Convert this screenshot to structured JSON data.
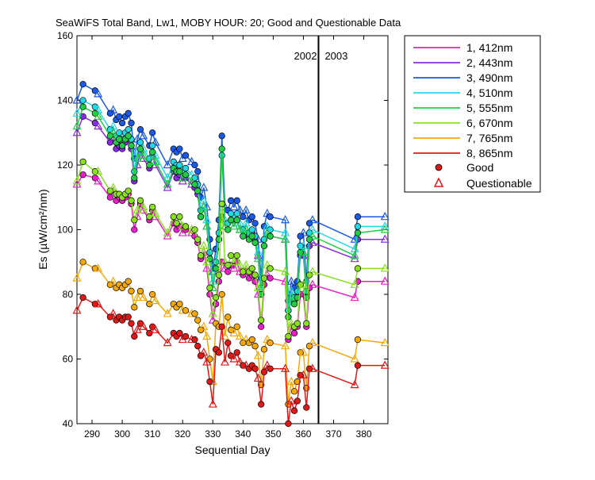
{
  "chart_data": {
    "type": "line",
    "title": "SeaWiFS Total Band,  Lw1, MOBY HOUR: 20;  Good and Questionable Data",
    "xlabel": "Sequential Day",
    "ylabel": "Es (µW/cm²/nm)",
    "xlim": [
      285,
      388
    ],
    "ylim": [
      40,
      160
    ],
    "xticks": [
      290,
      300,
      310,
      320,
      330,
      340,
      350,
      360,
      370,
      380
    ],
    "yticks": [
      40,
      60,
      80,
      100,
      120,
      140,
      160
    ],
    "grid": false,
    "legend_position": "outside-right",
    "year_divider": {
      "x": 365,
      "label_left": "2002",
      "label_right": "2003"
    },
    "x": [
      285,
      287,
      291,
      292,
      296,
      297,
      298,
      299,
      300,
      301,
      302,
      303,
      304,
      305,
      306,
      307,
      309,
      310,
      311,
      315,
      317,
      318,
      319,
      320,
      321,
      323,
      324,
      325,
      326,
      327,
      328,
      329,
      330,
      331,
      332,
      333,
      334,
      335,
      336,
      337,
      338,
      339,
      340,
      341,
      342,
      343,
      344,
      345,
      346,
      347,
      348,
      349,
      354,
      355,
      356,
      357,
      358,
      359,
      360,
      361,
      362,
      363,
      377,
      378,
      387
    ],
    "series": [
      {
        "name": "1, 412nm",
        "color": "#e81ec8",
        "values": [
          114,
          117,
          116,
          115,
          110,
          112,
          109,
          110,
          109,
          110,
          111,
          108,
          100,
          104,
          108,
          106,
          103,
          106,
          104,
          98,
          102,
          100,
          101,
          99,
          100,
          99,
          98,
          96,
          91,
          93,
          88,
          80,
          72,
          77,
          84,
          90,
          88,
          87,
          89,
          88,
          90,
          87,
          86,
          87,
          85,
          86,
          84,
          80,
          70,
          83,
          86,
          85,
          84,
          66,
          70,
          68,
          70,
          80,
          80,
          70,
          82,
          83,
          79,
          84,
          84
        ]
      },
      {
        "name": "2, 443nm",
        "color": "#8a2be2",
        "values": [
          130,
          135,
          133,
          132,
          127,
          128,
          125,
          126,
          125,
          127,
          128,
          125,
          115,
          120,
          124,
          122,
          119,
          123,
          120,
          113,
          118,
          116,
          117,
          115,
          116,
          114,
          113,
          111,
          104,
          107,
          101,
          91,
          82,
          88,
          97,
          104,
          101,
          100,
          103,
          101,
          103,
          100,
          98,
          100,
          98,
          99,
          97,
          92,
          80,
          95,
          99,
          98,
          97,
          75,
          80,
          78,
          80,
          92,
          92,
          80,
          95,
          96,
          91,
          97,
          97
        ]
      },
      {
        "name": "3, 490nm",
        "color": "#1a5ae6",
        "values": [
          140,
          145,
          143,
          142,
          136,
          137,
          134,
          135,
          133,
          135,
          136,
          133,
          122,
          128,
          131,
          129,
          126,
          130,
          127,
          120,
          125,
          124,
          125,
          122,
          123,
          121,
          120,
          118,
          110,
          113,
          107,
          97,
          87,
          94,
          103,
          129,
          107,
          106,
          109,
          107,
          109,
          106,
          104,
          106,
          103,
          104,
          102,
          97,
          85,
          101,
          105,
          104,
          103,
          78,
          84,
          82,
          84,
          98,
          99,
          84,
          102,
          103,
          97,
          104,
          104
        ]
      },
      {
        "name": "4, 510nm",
        "color": "#22d8e6",
        "values": [
          136,
          140,
          138,
          137,
          131,
          132,
          129,
          130,
          128,
          130,
          131,
          128,
          118,
          124,
          127,
          125,
          122,
          126,
          123,
          116,
          121,
          120,
          120,
          118,
          119,
          117,
          116,
          114,
          106,
          109,
          103,
          93,
          84,
          90,
          99,
          123,
          103,
          102,
          105,
          103,
          105,
          102,
          100,
          102,
          99,
          100,
          98,
          93,
          82,
          97,
          101,
          100,
          99,
          75,
          81,
          79,
          81,
          95,
          95,
          81,
          99,
          100,
          94,
          101,
          101
        ]
      },
      {
        "name": "5, 555nm",
        "color": "#22cc44",
        "values": [
          132,
          138,
          136,
          135,
          129,
          130,
          127,
          128,
          126,
          128,
          129,
          126,
          116,
          122,
          125,
          123,
          120,
          124,
          121,
          114,
          119,
          118,
          118,
          116,
          117,
          115,
          114,
          112,
          104,
          107,
          101,
          91,
          82,
          88,
          97,
          125,
          101,
          100,
          103,
          101,
          103,
          100,
          98,
          100,
          97,
          98,
          96,
          91,
          80,
          95,
          99,
          98,
          97,
          73,
          79,
          77,
          79,
          93,
          93,
          79,
          97,
          98,
          92,
          99,
          100
        ]
      },
      {
        "name": "6, 670nm",
        "color": "#88e020",
        "values": [
          115,
          121,
          118,
          118,
          112,
          113,
          111,
          111,
          110,
          111,
          112,
          109,
          103,
          106,
          109,
          107,
          104,
          107,
          105,
          99,
          104,
          102,
          104,
          101,
          101,
          100,
          100,
          97,
          92,
          95,
          90,
          82,
          74,
          79,
          86,
          108,
          90,
          89,
          92,
          90,
          92,
          89,
          87,
          89,
          87,
          88,
          86,
          82,
          72,
          85,
          89,
          88,
          87,
          67,
          71,
          70,
          71,
          83,
          83,
          71,
          86,
          87,
          83,
          88,
          88
        ]
      },
      {
        "name": "7, 765nm",
        "color": "#f5a80a",
        "values": [
          85,
          90,
          88,
          88,
          83,
          84,
          82,
          83,
          82,
          83,
          84,
          81,
          76,
          79,
          81,
          79,
          77,
          80,
          78,
          74,
          77,
          76,
          77,
          75,
          75,
          74,
          74,
          72,
          69,
          70,
          67,
          60,
          53,
          71,
          70,
          80,
          67,
          73,
          69,
          68,
          70,
          67,
          65,
          66,
          65,
          66,
          64,
          61,
          52,
          63,
          66,
          65,
          64,
          46,
          53,
          50,
          53,
          62,
          62,
          51,
          64,
          65,
          60,
          66,
          65
        ]
      },
      {
        "name": "8, 865nm",
        "color": "#e01818",
        "values": [
          75,
          79,
          77,
          77,
          73,
          74,
          72,
          73,
          72,
          73,
          73,
          71,
          67,
          69,
          71,
          70,
          68,
          70,
          69,
          65,
          68,
          67,
          68,
          66,
          67,
          66,
          66,
          64,
          61,
          62,
          59,
          53,
          46,
          63,
          62,
          70,
          59,
          65,
          61,
          60,
          62,
          59,
          58,
          58,
          57,
          58,
          57,
          54,
          46,
          56,
          58,
          57,
          57,
          40,
          47,
          44,
          47,
          55,
          55,
          45,
          57,
          57,
          52,
          58,
          58
        ]
      }
    ],
    "questionable_x": [
      285,
      292,
      297,
      305,
      307,
      311,
      315,
      320,
      323,
      327,
      328,
      330,
      334,
      337,
      339,
      341,
      345,
      348,
      354,
      356,
      360,
      363,
      377,
      387
    ],
    "marker_legend": {
      "good": "Good",
      "questionable": "Questionable"
    }
  }
}
